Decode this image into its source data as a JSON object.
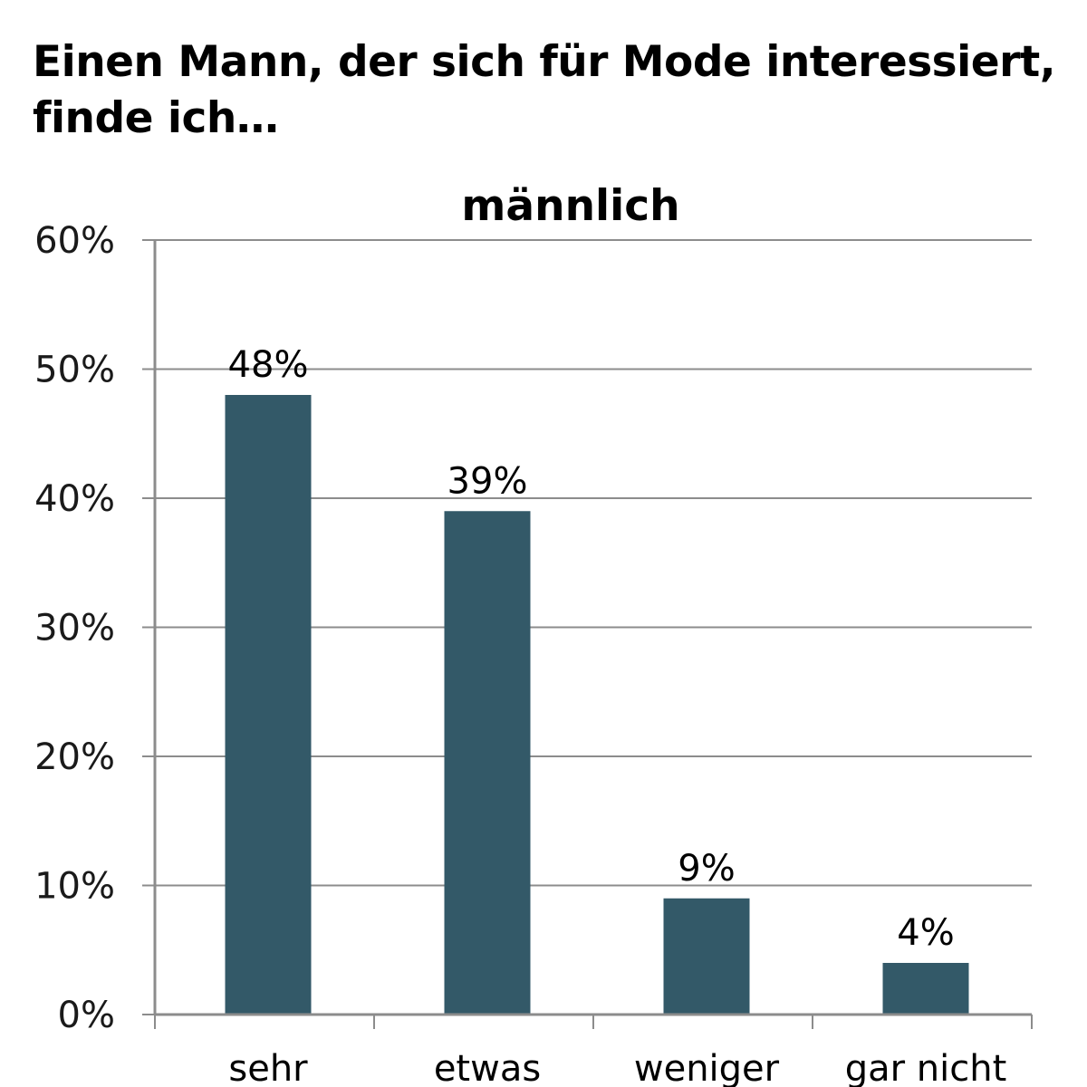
{
  "heading": {
    "line1": "Einen Mann, der sich für Mode interessiert,",
    "line2": "finde ich…"
  },
  "chart_data": {
    "type": "bar",
    "title": "männlich",
    "categories": [
      "sehr",
      "etwas",
      "weniger",
      "gar nicht"
    ],
    "values": [
      48,
      39,
      9,
      4
    ],
    "value_labels": [
      "48%",
      "39%",
      "9%",
      "4%"
    ],
    "y_ticks": [
      "0%",
      "10%",
      "20%",
      "30%",
      "40%",
      "50%",
      "60%"
    ],
    "ylim": [
      0,
      60
    ],
    "y_step": 10,
    "unit": "%",
    "grid": true,
    "legend": "none",
    "bar_color": "#335968",
    "grid_color": "#8c8c8c",
    "axis_color": "#8c8c8c"
  }
}
